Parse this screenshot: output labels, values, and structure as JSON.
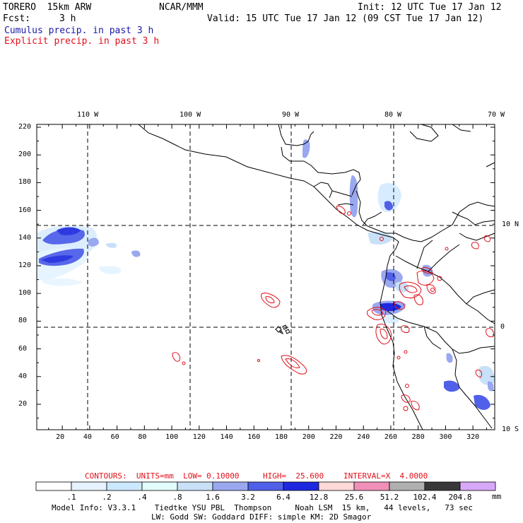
{
  "header": {
    "model": "TORERO  15km ARW",
    "org": "NCAR/MMM",
    "init": "Init: 12 UTC Tue 17 Jan 12",
    "fcst_label": "Fcst:",
    "fcst_value": "3 h",
    "valid": "Valid: 15 UTC Tue 17 Jan 12 (09 CST Tue 17 Jan 12)"
  },
  "legend": {
    "cumulus": "Cumulus precip. in past 3 h",
    "explicit": "Explicit precip. in past 3 h",
    "cumulus_color": "#1a1aa6",
    "explicit_color": "#e0101a"
  },
  "map": {
    "lon_labels": [
      "110 W",
      "100 W",
      "90 W",
      "80 W",
      "70 W"
    ],
    "lat_labels": [
      "10 N",
      "0",
      "10 S"
    ],
    "x_ticks": [
      "20",
      "40",
      "60",
      "80",
      "100",
      "120",
      "140",
      "160",
      "180",
      "200",
      "220",
      "240",
      "260",
      "280",
      "300",
      "320"
    ],
    "y_ticks": [
      "20",
      "40",
      "60",
      "80",
      "100",
      "120",
      "140",
      "160",
      "180",
      "200",
      "220"
    ]
  },
  "contours": {
    "units": "CONTOURS:  UNITS=mm  LOW= 0.10000",
    "high": "HIGH=  25.600",
    "interval": "INTERVAL=X  4.0000"
  },
  "colorbar": {
    "labels": [
      ".1",
      ".2",
      ".4",
      ".8",
      "1.6",
      "3.2",
      "6.4",
      "12.8",
      "25.6",
      "51.2",
      "102.4",
      "204.8"
    ],
    "unit": "mm",
    "colors": [
      "#ffffff",
      "#e6f2ff",
      "#cce8ff",
      "#e4fbfb",
      "#c8e0f8",
      "#9aa8f0",
      "#5060e8",
      "#1e28e0",
      "#ffd8d8",
      "#f090b8",
      "#b0b0b0",
      "#383838",
      "#d8a8f8"
    ]
  },
  "footer": {
    "line1": "Model Info: V3.3.1    Tiedtke YSU PBL  Thompson     Noah LSM  15 km,   44 levels,   73 sec",
    "line2": "LW: Godd SW: Goddard DIFF: simple KM: 2D Smagor"
  }
}
